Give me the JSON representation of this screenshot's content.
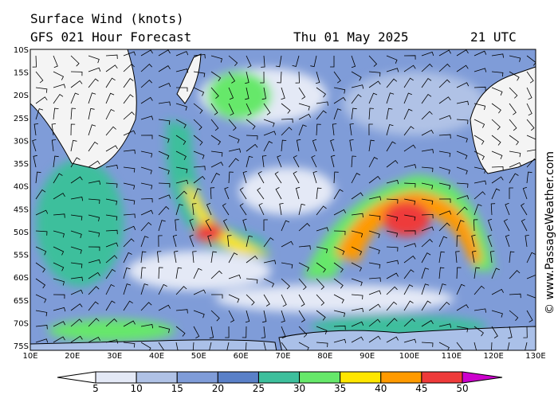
{
  "header": {
    "title": "Surface Wind (knots)",
    "model": "GFS 021 Hour Forecast",
    "date": "Thu 01 May 2025",
    "time": "21 UTC"
  },
  "axes": {
    "lat": [
      "10S",
      "15S",
      "20S",
      "25S",
      "30S",
      "35S",
      "40S",
      "45S",
      "50S",
      "55S",
      "60S",
      "65S",
      "70S",
      "75S"
    ],
    "lon": [
      "10E",
      "20E",
      "30E",
      "40E",
      "50E",
      "60E",
      "70E",
      "80E",
      "90E",
      "100E",
      "110E",
      "120E",
      "130E"
    ]
  },
  "colorbar": {
    "labels": [
      5,
      10,
      15,
      20,
      25,
      30,
      35,
      40,
      45,
      50
    ],
    "colors": [
      "#ffffff",
      "#e4e9f6",
      "#b0c2e6",
      "#7f9cd8",
      "#5a80c8",
      "#3dbf9c",
      "#66e86a",
      "#ffe600",
      "#ff9a00",
      "#ee3a3a",
      "#c00000",
      "#cc00cc"
    ]
  },
  "credit": "© www.PassageWeather.com"
}
